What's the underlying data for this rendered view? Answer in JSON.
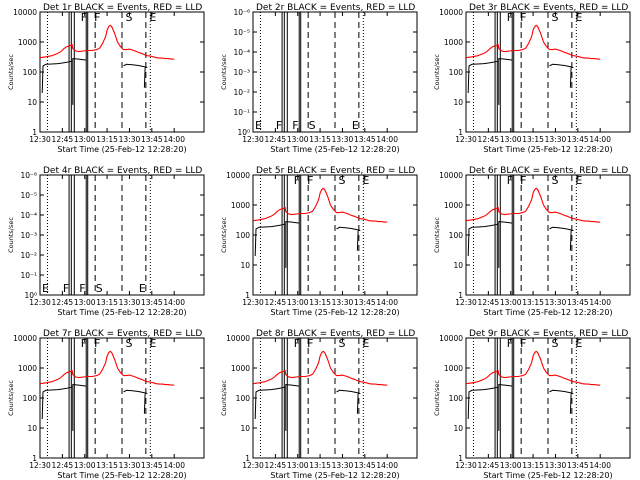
{
  "figure": {
    "xlabel": "Start Time (25-Feb-12 12:28:20)",
    "ylabel": "Counts/sec",
    "x_tick_labels": [
      "12:30",
      "12:45",
      "13:00",
      "13:15",
      "13:30",
      "13:45",
      "14:00"
    ],
    "x_tick_minutes": [
      0,
      15,
      30,
      45,
      60,
      75,
      90
    ],
    "x_range_minutes": [
      0,
      110
    ],
    "x_zero_time": "12:30",
    "colors": {
      "events": "#000000",
      "lld": "#ff0000",
      "frame": "#000000"
    }
  },
  "chart_data": [
    {
      "type": "line",
      "title": "Det 1r BLACK = Events, RED = LLD",
      "ylim": [
        1,
        10000
      ],
      "yscale": "log",
      "y_tick_labels": [
        "1",
        "10",
        "100",
        "1000",
        "10000"
      ],
      "y_tick_values": [
        1,
        10,
        100,
        1000,
        10000
      ],
      "has_data": true,
      "markers": {
        "letters": [
          "F",
          "F",
          "S",
          "E"
        ],
        "minutes": [
          26,
          35,
          56,
          72
        ]
      }
    },
    {
      "type": "line",
      "title": "Det 2r BLACK = Events, RED = LLD",
      "ylim": [
        1,
        1e-06
      ],
      "yscale": "log",
      "y_tick_labels": [
        "10⁰",
        "10⁻¹",
        "10⁻²",
        "10⁻³",
        "10⁻⁴",
        "10⁻⁵",
        "10⁻⁶"
      ],
      "y_tick_values": [
        1,
        0.1,
        0.01,
        0.001,
        0.0001,
        1e-05,
        1e-06
      ],
      "has_data": false,
      "markers": {
        "letters": [
          "E",
          "F",
          "F",
          "S",
          "E"
        ],
        "minutes": [
          0,
          14,
          25,
          36,
          65
        ]
      }
    },
    {
      "type": "line",
      "title": "Det 3r BLACK = Events, RED = LLD",
      "ylim": [
        1,
        10000
      ],
      "yscale": "log",
      "y_tick_labels": [
        "1",
        "10",
        "100",
        "1000",
        "10000"
      ],
      "y_tick_values": [
        1,
        10,
        100,
        1000,
        10000
      ],
      "has_data": true,
      "markers": {
        "letters": [
          "F",
          "F",
          "S",
          "E"
        ],
        "minutes": [
          26,
          35,
          56,
          72
        ]
      }
    },
    {
      "type": "line",
      "title": "Det 4r BLACK = Events, RED = LLD",
      "ylim": [
        1,
        1e-06
      ],
      "yscale": "log",
      "y_tick_labels": [
        "10⁰",
        "10⁻¹",
        "10⁻²",
        "10⁻³",
        "10⁻⁴",
        "10⁻⁵",
        "10⁻⁶"
      ],
      "y_tick_values": [
        1,
        0.1,
        0.01,
        0.001,
        0.0001,
        1e-05,
        1e-06
      ],
      "has_data": false,
      "markers": {
        "letters": [
          "E",
          "F",
          "F",
          "S",
          "E"
        ],
        "minutes": [
          0,
          14,
          25,
          36,
          65
        ]
      }
    },
    {
      "type": "line",
      "title": "Det 5r BLACK = Events, RED = LLD",
      "ylim": [
        1,
        10000
      ],
      "yscale": "log",
      "y_tick_labels": [
        "1",
        "10",
        "100",
        "1000",
        "10000"
      ],
      "y_tick_values": [
        1,
        10,
        100,
        1000,
        10000
      ],
      "has_data": true,
      "markers": {
        "letters": [
          "F",
          "F",
          "S",
          "E"
        ],
        "minutes": [
          26,
          35,
          56,
          72
        ]
      }
    },
    {
      "type": "line",
      "title": "Det 6r BLACK = Events, RED = LLD",
      "ylim": [
        1,
        10000
      ],
      "yscale": "log",
      "y_tick_labels": [
        "1",
        "10",
        "100",
        "1000",
        "10000"
      ],
      "y_tick_values": [
        1,
        10,
        100,
        1000,
        10000
      ],
      "has_data": true,
      "markers": {
        "letters": [
          "F",
          "F",
          "S",
          "E"
        ],
        "minutes": [
          26,
          35,
          56,
          72
        ]
      }
    },
    {
      "type": "line",
      "title": "Det 7r BLACK = Events, RED = LLD",
      "ylim": [
        1,
        10000
      ],
      "yscale": "log",
      "y_tick_labels": [
        "1",
        "10",
        "100",
        "1000",
        "10000"
      ],
      "y_tick_values": [
        1,
        10,
        100,
        1000,
        10000
      ],
      "has_data": true,
      "markers": {
        "letters": [
          "F",
          "F",
          "S",
          "E"
        ],
        "minutes": [
          26,
          35,
          56,
          72
        ]
      }
    },
    {
      "type": "line",
      "title": "Det 8r BLACK = Events, RED = LLD",
      "ylim": [
        1,
        10000
      ],
      "yscale": "log",
      "y_tick_labels": [
        "1",
        "10",
        "100",
        "1000",
        "10000"
      ],
      "y_tick_values": [
        1,
        10,
        100,
        1000,
        10000
      ],
      "has_data": true,
      "markers": {
        "letters": [
          "F",
          "F",
          "S",
          "E"
        ],
        "minutes": [
          26,
          35,
          56,
          72
        ]
      }
    },
    {
      "type": "line",
      "title": "Det 9r BLACK = Events, RED = LLD",
      "ylim": [
        1,
        10000
      ],
      "yscale": "log",
      "y_tick_labels": [
        "1",
        "10",
        "100",
        "1000",
        "10000"
      ],
      "y_tick_values": [
        1,
        10,
        100,
        1000,
        10000
      ],
      "has_data": true,
      "markers": {
        "letters": [
          "F",
          "F",
          "S",
          "E"
        ],
        "minutes": [
          26,
          35,
          56,
          72
        ]
      }
    }
  ],
  "series_shared": {
    "lld": {
      "name": "RED = LLD",
      "x": [
        0,
        4,
        8,
        12,
        14,
        16,
        18,
        20,
        21.5,
        22,
        24,
        26,
        29,
        32,
        35,
        38,
        40,
        42,
        44,
        45,
        46,
        47,
        48,
        50,
        52,
        54,
        56,
        58,
        60,
        62,
        64,
        66,
        68,
        70,
        72,
        74,
        76,
        78,
        80,
        82,
        84,
        86,
        88,
        90
      ],
      "y": [
        300,
        320,
        350,
        420,
        480,
        600,
        700,
        750,
        820,
        600,
        500,
        480,
        500,
        520,
        520,
        560,
        620,
        900,
        1500,
        2500,
        3200,
        3600,
        3300,
        2000,
        1000,
        700,
        560,
        560,
        580,
        540,
        500,
        450,
        420,
        380,
        350,
        340,
        320,
        300,
        290,
        290,
        280,
        280,
        270,
        270
      ]
    },
    "events": [
      {
        "name": "BLACK = Events",
        "x": [
          1.5,
          2,
          4,
          8,
          12,
          15,
          18,
          20,
          21.5
        ],
        "y": [
          20,
          160,
          180,
          185,
          190,
          200,
          210,
          220,
          230
        ]
      },
      {
        "name": "BLACK = Events",
        "x": [
          22,
          22,
          26,
          31
        ],
        "y": [
          8,
          280,
          270,
          250
        ]
      },
      {
        "name": "BLACK = Events",
        "x": [
          56,
          58,
          62,
          66,
          70,
          72
        ],
        "y": [
          160,
          180,
          175,
          165,
          150,
          140
        ]
      },
      {
        "name": "BLACK = Events",
        "x": [
          70,
          70.5
        ],
        "y": [
          30,
          140
        ]
      }
    ],
    "solid_vlines_minutes": [
      19.5,
      21.0,
      23.0,
      31.0,
      32.0
    ],
    "dashed_vlines_minutes": [
      37.0,
      55.0,
      71.0
    ],
    "dotted_vlines_minutes": [
      5.0,
      74.0
    ]
  }
}
